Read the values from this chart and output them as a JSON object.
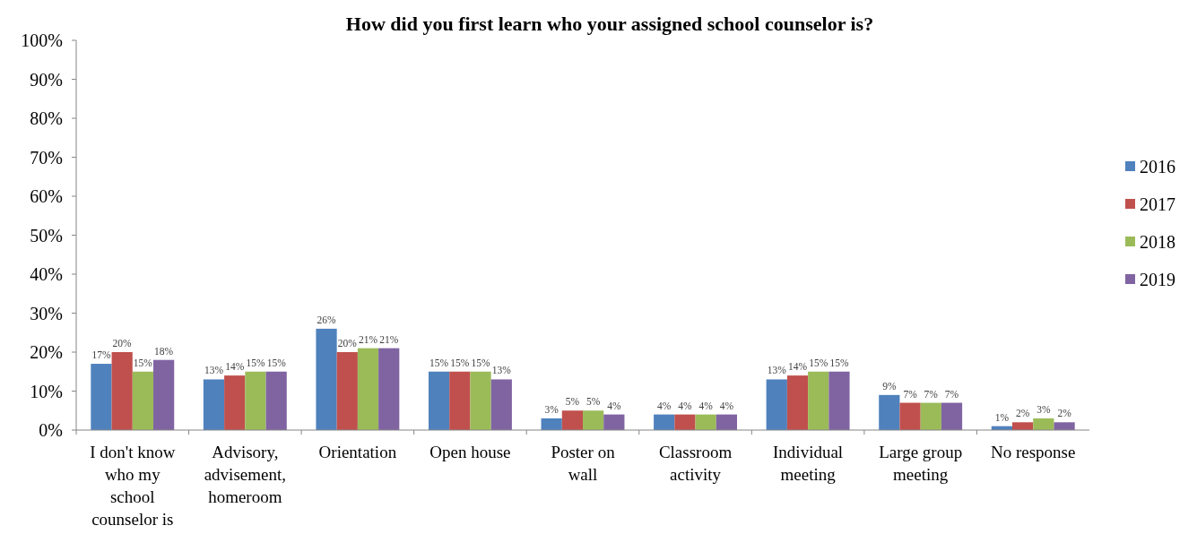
{
  "chart_data": {
    "type": "bar",
    "title": "How did you first learn who your assigned school counselor is?",
    "categories": [
      "I don't know who my school counselor is",
      "Advisory, advisement, homeroom",
      "Orientation",
      "Open house",
      "Poster on wall",
      "Classroom activity",
      "Individual meeting",
      "Large group meeting",
      "No response"
    ],
    "series": [
      {
        "name": "2016",
        "color": "#4f81bd",
        "values": [
          17,
          13,
          26,
          15,
          3,
          4,
          13,
          9,
          1
        ],
        "value_labels": [
          "17%",
          "13%",
          "26%",
          "15%",
          "3%",
          "4%",
          "13%",
          "9%",
          "1%"
        ]
      },
      {
        "name": "2017",
        "color": "#c0504d",
        "values": [
          20,
          14,
          20,
          15,
          5,
          4,
          14,
          7,
          2
        ],
        "value_labels": [
          "20%",
          "14%",
          "20%",
          "15%",
          "5%",
          "4%",
          "14%",
          "7%",
          "2%"
        ]
      },
      {
        "name": "2018",
        "color": "#9bbb59",
        "values": [
          15,
          15,
          21,
          15,
          5,
          4,
          15,
          7,
          3
        ],
        "value_labels": [
          "15%",
          "15%",
          "21%",
          "15%",
          "5%",
          "4%",
          "15%",
          "7%",
          "3%"
        ]
      },
      {
        "name": "2019",
        "color": "#8064a2",
        "values": [
          18,
          15,
          21,
          13,
          4,
          4,
          15,
          7,
          2
        ],
        "value_labels": [
          "18%",
          "15%",
          "21%",
          "13%",
          "4%",
          "4%",
          "15%",
          "7%",
          "2%"
        ]
      }
    ],
    "ylim": [
      0,
      100
    ],
    "yticks": [
      {
        "value": 0,
        "label": "0%"
      },
      {
        "value": 10,
        "label": "10%"
      },
      {
        "value": 20,
        "label": "20%"
      },
      {
        "value": 30,
        "label": "30%"
      },
      {
        "value": 40,
        "label": "40%"
      },
      {
        "value": 50,
        "label": "50%"
      },
      {
        "value": 60,
        "label": "60%"
      },
      {
        "value": 70,
        "label": "70%"
      },
      {
        "value": 80,
        "label": "80%"
      },
      {
        "value": 90,
        "label": "90%"
      },
      {
        "value": 100,
        "label": "100%"
      }
    ],
    "grid": false,
    "legend": "right"
  }
}
